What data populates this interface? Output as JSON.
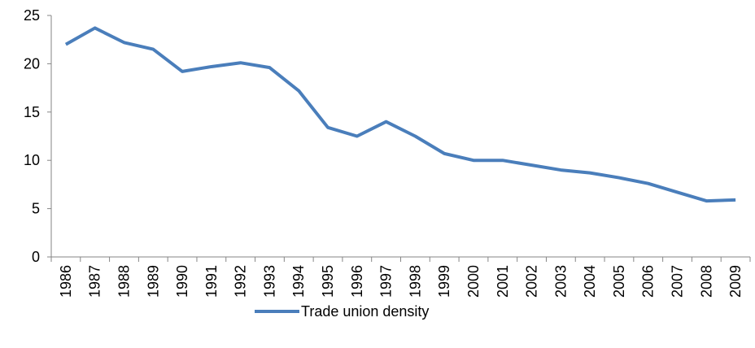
{
  "chart_data": {
    "type": "line",
    "categories": [
      "1986",
      "1987",
      "1988",
      "1989",
      "1990",
      "1991",
      "1992",
      "1993",
      "1994",
      "1995",
      "1996",
      "1997",
      "1998",
      "1999",
      "2000",
      "2001",
      "2002",
      "2003",
      "2004",
      "2005",
      "2006",
      "2007",
      "2008",
      "2009"
    ],
    "series": [
      {
        "name": "Trade union density",
        "color": "#4a7ebb",
        "values": [
          22.0,
          23.7,
          22.2,
          21.5,
          19.2,
          19.7,
          20.1,
          19.6,
          17.2,
          13.4,
          12.5,
          14.0,
          12.5,
          10.7,
          10.0,
          10.0,
          9.5,
          9.0,
          8.7,
          8.2,
          7.6,
          6.7,
          5.8,
          5.9
        ]
      }
    ],
    "ylim": [
      0,
      25
    ],
    "yticks": [
      0,
      5,
      10,
      15,
      20,
      25
    ],
    "grid": false,
    "legend": "bottom"
  }
}
